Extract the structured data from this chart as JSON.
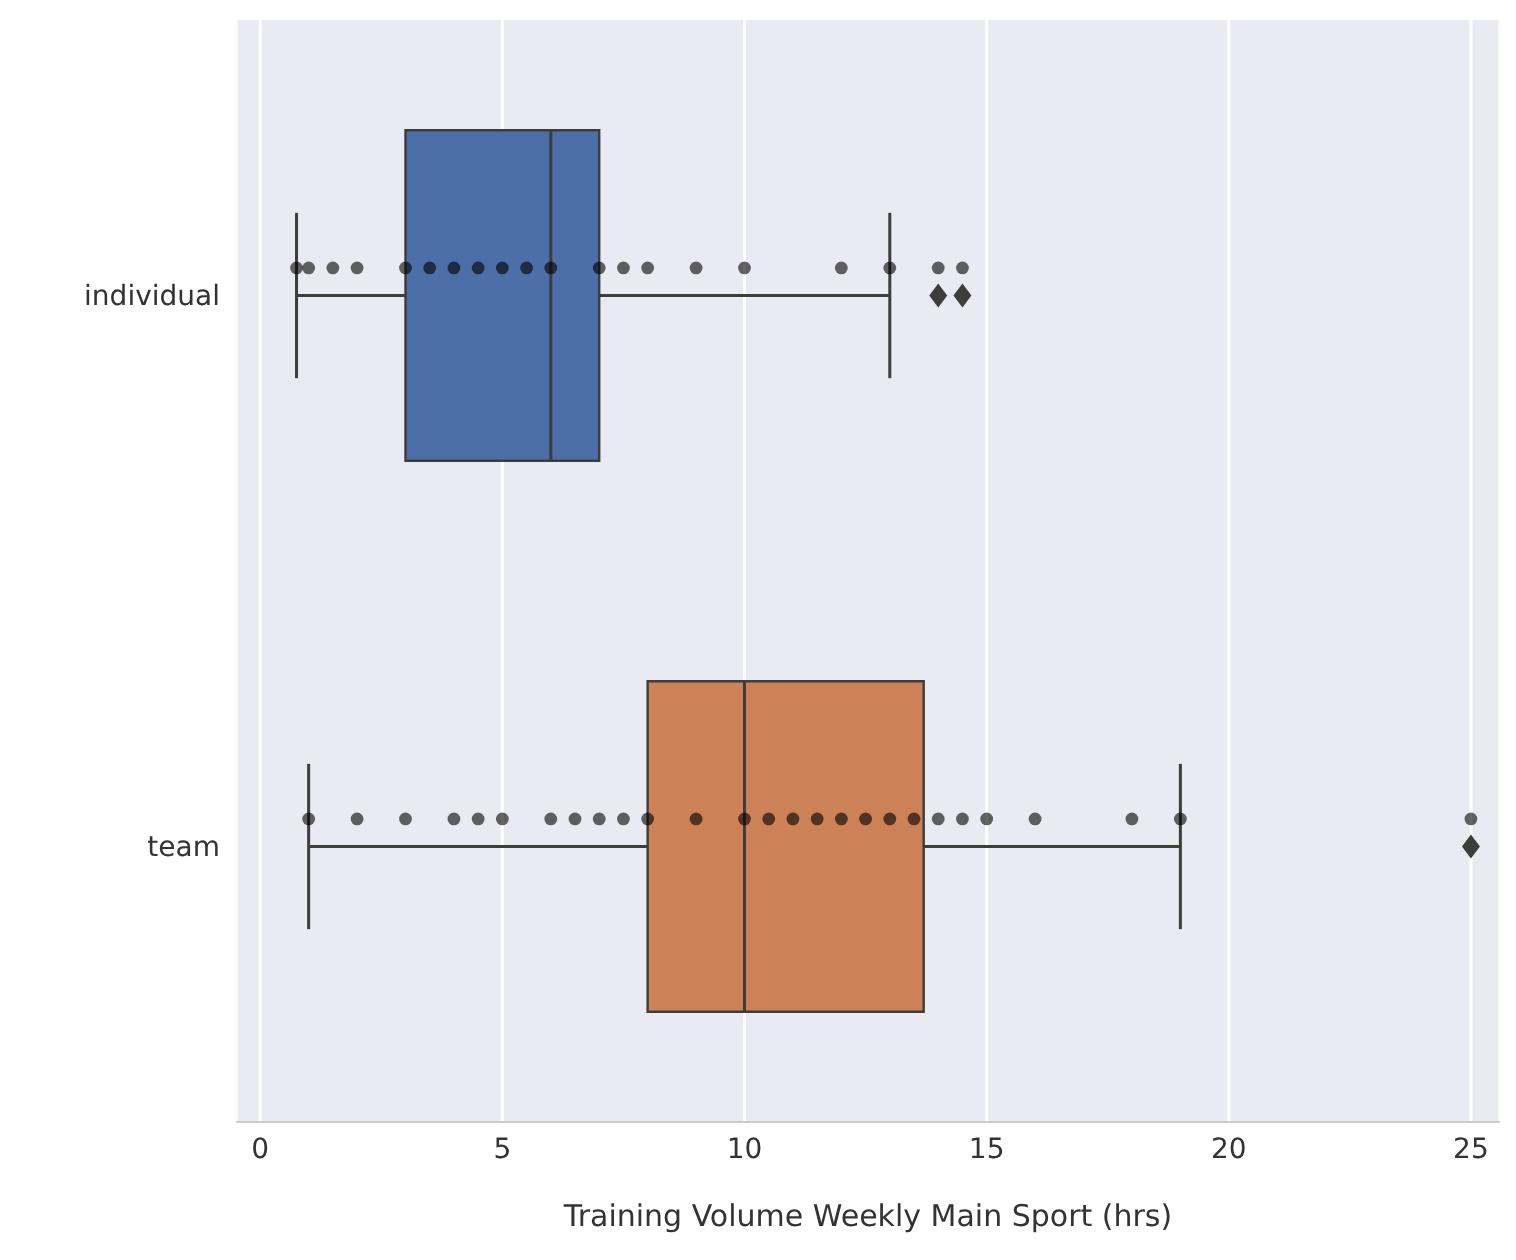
{
  "chart_data": {
    "type": "box",
    "orientation": "horizontal",
    "xlabel": "Training Volume Weekly Main Sport (hrs)",
    "categories": [
      "individual",
      "team"
    ],
    "colors": [
      "#4c6fa8",
      "#cd8157"
    ],
    "boxes": [
      {
        "low": 0.75,
        "q1": 3,
        "median": 6,
        "q3": 7,
        "high": 13,
        "outliers": [
          14,
          14.5
        ]
      },
      {
        "low": 1,
        "q1": 8,
        "median": 10,
        "q3": 13.7,
        "high": 19,
        "outliers": [
          25
        ]
      }
    ],
    "series": [
      {
        "type": "scatter",
        "color": "#000000",
        "x": [
          "individual",
          "individual",
          "individual",
          "individual",
          "individual",
          "individual",
          "individual",
          "individual",
          "individual",
          "individual",
          "individual",
          "individual",
          "individual",
          "individual",
          "individual",
          "individual",
          "individual",
          "individual",
          "individual",
          "individual",
          "team",
          "team",
          "team",
          "team",
          "team",
          "team",
          "team",
          "team",
          "team",
          "team",
          "team",
          "team",
          "team",
          "team",
          "team",
          "team",
          "team",
          "team",
          "team",
          "team",
          "team",
          "team",
          "team",
          "team",
          "team",
          "team",
          "team"
        ],
        "values": [
          0.75,
          1,
          1.5,
          2,
          3,
          3.5,
          4,
          4.5,
          5,
          5.5,
          6,
          7,
          7.5,
          8,
          9,
          10,
          12,
          13,
          14,
          14.5,
          1,
          2,
          3,
          4,
          4.5,
          5,
          6,
          6.5,
          7,
          7.5,
          8,
          9,
          10,
          10.5,
          11,
          11.5,
          12,
          12.5,
          13,
          13.5,
          14,
          14.5,
          15,
          16,
          18,
          19,
          25
        ]
      }
    ],
    "xlim": [
      -0.5,
      25.6
    ],
    "xticks": [
      0,
      5,
      10,
      15,
      20,
      25
    ],
    "grid": "x"
  }
}
